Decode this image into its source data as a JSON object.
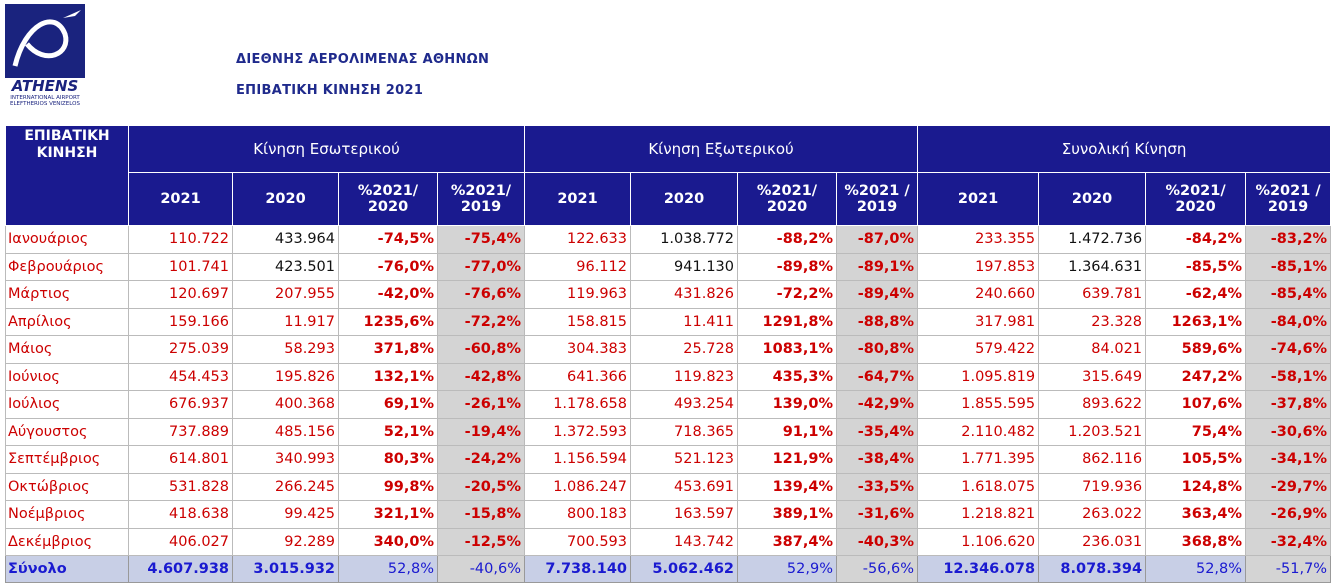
{
  "logo": {
    "name": "ATHENS",
    "line1": "INTERNATIONAL AIRPORT",
    "line2": "ELEFTHERIOS VENIZELOS"
  },
  "header": {
    "title": "ΔΙΕΘΝΗΣ ΑΕΡΟΛΙΜΕΝΑΣ ΑΘΗΝΩΝ",
    "subtitle": "ΕΠΙΒΑΤΙΚΗ ΚΙΝΗΣΗ 2021"
  },
  "table": {
    "corner": "ΕΠΙΒΑΤΙΚΗ ΚΙΝΗΣΗ",
    "groups": [
      "Κίνηση Εσωτερικού",
      "Κίνηση Εξωτερικού",
      "Συνολική Κίνηση"
    ],
    "subheaders": [
      "2021",
      "2020",
      "%2021/ 2020",
      "%2021/ 2019",
      "2021",
      "2020",
      "%2021/ 2020",
      "%2021 / 2019",
      "2021",
      "2020",
      "%2021/ 2020",
      "%2021 / 2019"
    ],
    "rows": [
      [
        "Ιανουάριος",
        "110.722",
        "433.964",
        "-74,5%",
        "-75,4%",
        "122.633",
        "1.038.772",
        "-88,2%",
        "-87,0%",
        "233.355",
        "1.472.736",
        "-84,2%",
        "-83,2%"
      ],
      [
        "Φεβρουάριος",
        "101.741",
        "423.501",
        "-76,0%",
        "-77,0%",
        "96.112",
        "941.130",
        "-89,8%",
        "-89,1%",
        "197.853",
        "1.364.631",
        "-85,5%",
        "-85,1%"
      ],
      [
        "Μάρτιος",
        "120.697",
        "207.955",
        "-42,0%",
        "-76,6%",
        "119.963",
        "431.826",
        "-72,2%",
        "-89,4%",
        "240.660",
        "639.781",
        "-62,4%",
        "-85,4%"
      ],
      [
        "Απρίλιος",
        "159.166",
        "11.917",
        "1235,6%",
        "-72,2%",
        "158.815",
        "11.411",
        "1291,8%",
        "-88,8%",
        "317.981",
        "23.328",
        "1263,1%",
        "-84,0%"
      ],
      [
        "Μάιος",
        "275.039",
        "58.293",
        "371,8%",
        "-60,8%",
        "304.383",
        "25.728",
        "1083,1%",
        "-80,8%",
        "579.422",
        "84.021",
        "589,6%",
        "-74,6%"
      ],
      [
        "Ιούνιος",
        "454.453",
        "195.826",
        "132,1%",
        "-42,8%",
        "641.366",
        "119.823",
        "435,3%",
        "-64,7%",
        "1.095.819",
        "315.649",
        "247,2%",
        "-58,1%"
      ],
      [
        "Ιούλιος",
        "676.937",
        "400.368",
        "69,1%",
        "-26,1%",
        "1.178.658",
        "493.254",
        "139,0%",
        "-42,9%",
        "1.855.595",
        "893.622",
        "107,6%",
        "-37,8%"
      ],
      [
        "Αύγουστος",
        "737.889",
        "485.156",
        "52,1%",
        "-19,4%",
        "1.372.593",
        "718.365",
        "91,1%",
        "-35,4%",
        "2.110.482",
        "1.203.521",
        "75,4%",
        "-30,6%"
      ],
      [
        "Σεπτέμβριος",
        "614.801",
        "340.993",
        "80,3%",
        "-24,2%",
        "1.156.594",
        "521.123",
        "121,9%",
        "-38,4%",
        "1.771.395",
        "862.116",
        "105,5%",
        "-34,1%"
      ],
      [
        "Οκτώβριος",
        "531.828",
        "266.245",
        "99,8%",
        "-20,5%",
        "1.086.247",
        "453.691",
        "139,4%",
        "-33,5%",
        "1.618.075",
        "719.936",
        "124,8%",
        "-29,7%"
      ],
      [
        "Νοέμβριος",
        "418.638",
        "99.425",
        "321,1%",
        "-15,8%",
        "800.183",
        "163.597",
        "389,1%",
        "-31,6%",
        "1.218.821",
        "263.022",
        "363,4%",
        "-26,9%"
      ],
      [
        "Δεκέμβριος",
        "406.027",
        "92.289",
        "340,0%",
        "-12,5%",
        "700.593",
        "143.742",
        "387,4%",
        "-40,3%",
        "1.106.620",
        "236.031",
        "368,8%",
        "-32,4%"
      ]
    ],
    "total": [
      "Σύνολο",
      "4.607.938",
      "3.015.932",
      "52,8%",
      "-40,6%",
      "7.738.140",
      "5.062.462",
      "52,9%",
      "-56,6%",
      "12.346.078",
      "8.078.394",
      "52,8%",
      "-51,7%"
    ]
  }
}
